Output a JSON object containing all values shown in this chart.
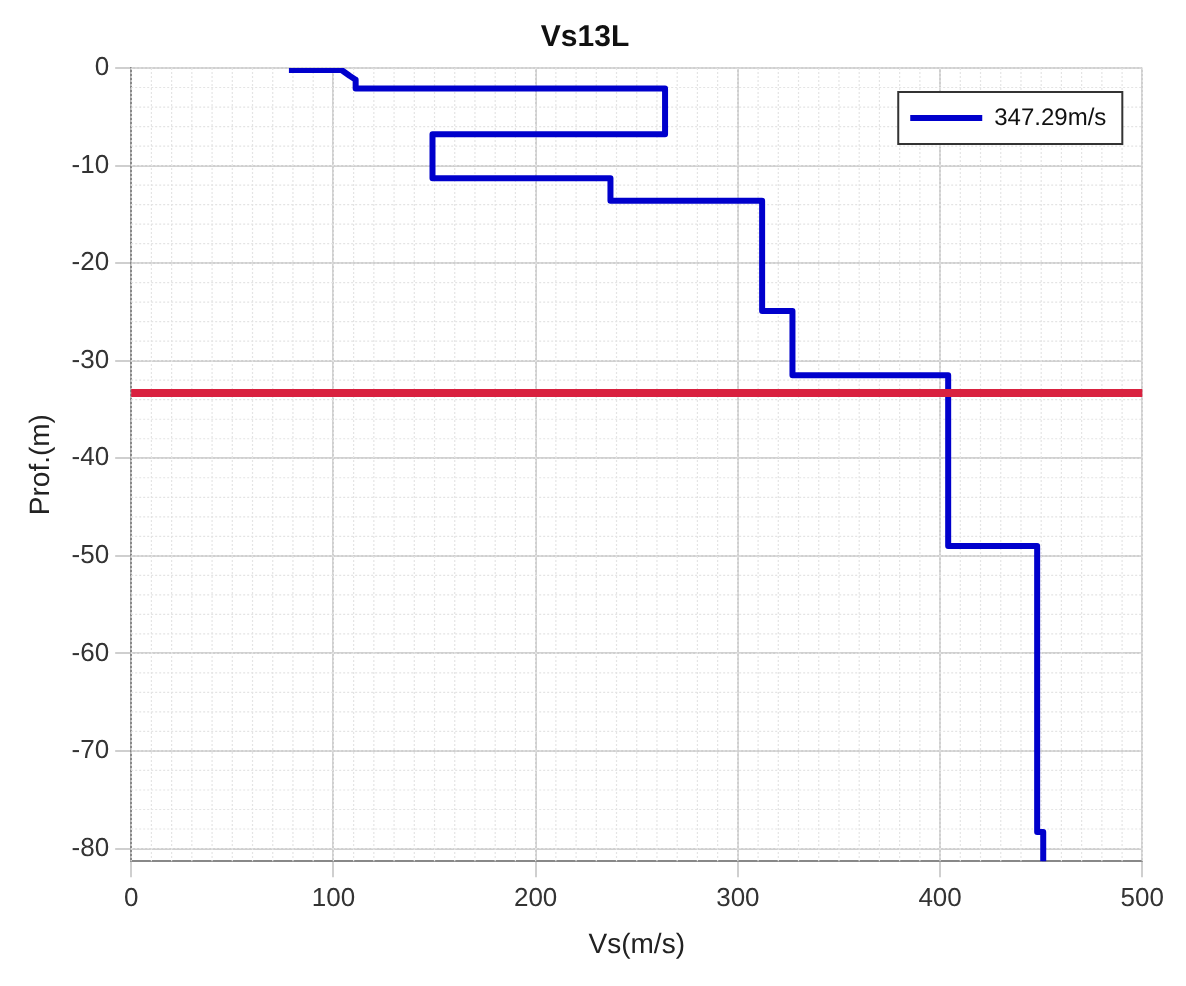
{
  "chart_data": {
    "type": "line",
    "title": "Vs13L",
    "xlabel": "Vs(m/s)",
    "ylabel": "Prof.(m)",
    "series": [
      {
        "name": "347.29m/s",
        "color": "#0000cc",
        "x": [
          78,
          104,
          108,
          111,
          111,
          264,
          264,
          149,
          149,
          237,
          237,
          312,
          312,
          327,
          327,
          404,
          404,
          448,
          448,
          451,
          451
        ],
        "values": [
          -0.2,
          -0.2,
          -0.8,
          -1.2,
          -2.1,
          -2.1,
          -6.8,
          -6.8,
          -11.3,
          -11.3,
          -13.6,
          -13.6,
          -24.9,
          -24.9,
          -31.5,
          -31.5,
          -49,
          -49,
          -78.3,
          -78.3,
          -81.3
        ]
      }
    ],
    "xlim": [
      0,
      500
    ],
    "xticks": [
      0,
      100,
      200,
      300,
      400,
      500
    ],
    "ylim": [
      -81.3,
      0
    ],
    "yticks": [
      0,
      -10,
      -20,
      -30,
      -40,
      -50,
      -60,
      -70,
      -80
    ],
    "ref_lines": [
      {
        "axis": "y",
        "value": -33.3,
        "color": "#d9213f"
      }
    ],
    "grid": true,
    "legend": "top right",
    "marker": "none",
    "line_style": "solid"
  }
}
